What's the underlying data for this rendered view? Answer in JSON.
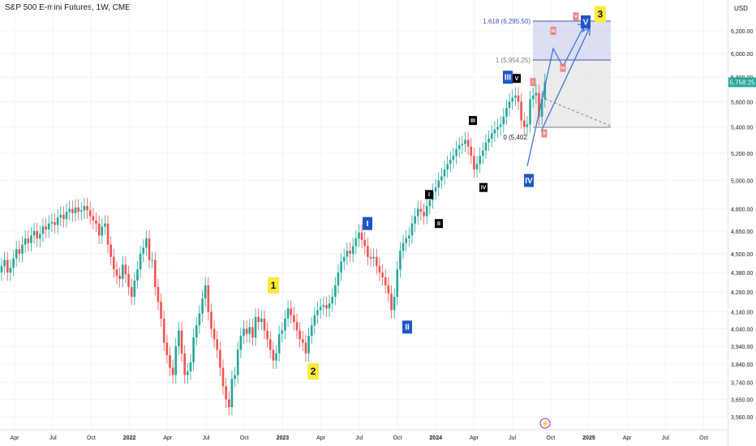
{
  "header": {
    "title": "S&P 500 E-mini Futures, 1W, CME",
    "currency": "USD"
  },
  "price_badge": {
    "value": "5,758.25",
    "color": "#26a69a"
  },
  "colors": {
    "up": "#26a69a",
    "down": "#ef5350",
    "wave_blue": "#1e55c7",
    "label_yellow": "#ffeb3b",
    "accent_pink": "#e57373",
    "fib_fill": "#c5cae9"
  },
  "chart_data": {
    "type": "candlestick",
    "x_axis": {
      "ticks": [
        "Apr",
        "Jul",
        "Oct",
        "2022",
        "Apr",
        "Jul",
        "Oct",
        "2023",
        "Apr",
        "Jul",
        "Oct",
        "2024",
        "Apr",
        "Jul",
        "Oct",
        "2025",
        "Apr",
        "Jul",
        "Oct"
      ]
    },
    "y_axis": {
      "scale": "log",
      "ticks": [
        3560,
        3650,
        3740,
        3840,
        3940,
        4040,
        4140,
        4260,
        4380,
        4500,
        4650,
        4800,
        5000,
        5200,
        5400,
        5600,
        5800,
        6000,
        6200
      ],
      "tick_labels": [
        "3,560.00",
        "3,650.00",
        "3,740.00",
        "3,840.00",
        "3,940.00",
        "4,040.00",
        "4,140.00",
        "4,260.00",
        "4,380.00",
        "4,500.00",
        "4,650.00",
        "4,800.00",
        "5,000.00",
        "5,200.00",
        "5,400.00",
        "5,600.00",
        "5,800.00",
        "6,000.00",
        "6,200.00"
      ]
    },
    "last_price": 5758.25,
    "fib_levels": [
      {
        "label": "1.618 (6,295.50)",
        "value": 6295.5
      },
      {
        "label": "1 (5,954.25)",
        "value": 5954.25
      },
      {
        "label": "0 (5,402.",
        "value": 5402
      }
    ],
    "wave_labels": [
      {
        "text": "1",
        "style": "yellow",
        "price": 4300
      },
      {
        "text": "2",
        "style": "yellow",
        "price": 3800
      },
      {
        "text": "3",
        "style": "yellow",
        "price": 6350
      },
      {
        "text": "I",
        "style": "blue",
        "price": 4700
      },
      {
        "text": "II",
        "style": "blue",
        "price": 4050
      },
      {
        "text": "III",
        "style": "blue",
        "price": 5800
      },
      {
        "text": "IV",
        "style": "blue",
        "price": 5000
      },
      {
        "text": "V",
        "style": "blue",
        "price": 6280
      },
      {
        "text": "I",
        "style": "black",
        "price": 4900
      },
      {
        "text": "II",
        "style": "black",
        "price": 4700
      },
      {
        "text": "III",
        "style": "black",
        "price": 5450
      },
      {
        "text": "IV",
        "style": "black",
        "price": 4950
      },
      {
        "text": "V",
        "style": "black",
        "price": 5790
      },
      {
        "text": "i",
        "style": "pink",
        "price": 5760
      },
      {
        "text": "ii",
        "style": "pink",
        "price": 5350
      },
      {
        "text": "iii",
        "style": "pink",
        "price": 6200
      },
      {
        "text": "iv",
        "style": "pink",
        "price": 5880
      },
      {
        "text": "v",
        "style": "pink",
        "price": 6330
      }
    ],
    "candles": [
      [
        4380,
        4420
      ],
      [
        4420,
        4460
      ],
      [
        4460,
        4380
      ],
      [
        4380,
        4410
      ],
      [
        4410,
        4470
      ],
      [
        4470,
        4530
      ],
      [
        4530,
        4500
      ],
      [
        4500,
        4560
      ],
      [
        4560,
        4600
      ],
      [
        4600,
        4570
      ],
      [
        4570,
        4620
      ],
      [
        4620,
        4650
      ],
      [
        4650,
        4600
      ],
      [
        4600,
        4630
      ],
      [
        4630,
        4680
      ],
      [
        4680,
        4660
      ],
      [
        4660,
        4700
      ],
      [
        4700,
        4710
      ],
      [
        4710,
        4690
      ],
      [
        4690,
        4740
      ],
      [
        4740,
        4760
      ],
      [
        4760,
        4730
      ],
      [
        4730,
        4780
      ],
      [
        4780,
        4800
      ],
      [
        4800,
        4770
      ],
      [
        4770,
        4810
      ],
      [
        4810,
        4780
      ],
      [
        4780,
        4790
      ],
      [
        4790,
        4820
      ],
      [
        4820,
        4790
      ],
      [
        4790,
        4750
      ],
      [
        4750,
        4720
      ],
      [
        4720,
        4700
      ],
      [
        4700,
        4620
      ],
      [
        4620,
        4680
      ],
      [
        4680,
        4700
      ],
      [
        4700,
        4560
      ],
      [
        4560,
        4480
      ],
      [
        4480,
        4400
      ],
      [
        4400,
        4360
      ],
      [
        4360,
        4340
      ],
      [
        4340,
        4430
      ],
      [
        4430,
        4370
      ],
      [
        4370,
        4290
      ],
      [
        4290,
        4230
      ],
      [
        4230,
        4330
      ],
      [
        4330,
        4400
      ],
      [
        4400,
        4500
      ],
      [
        4500,
        4540
      ],
      [
        4540,
        4600
      ],
      [
        4600,
        4460
      ],
      [
        4460,
        4460
      ],
      [
        4460,
        4290
      ],
      [
        4290,
        4200
      ],
      [
        4200,
        4100
      ],
      [
        4100,
        3960
      ],
      [
        3960,
        3890
      ],
      [
        3890,
        3820
      ],
      [
        3820,
        3780
      ],
      [
        3780,
        3940
      ],
      [
        3940,
        4030
      ],
      [
        4030,
        3900
      ],
      [
        3900,
        3780
      ],
      [
        3780,
        3800
      ],
      [
        3800,
        3850
      ],
      [
        3850,
        3990
      ],
      [
        3990,
        4060
      ],
      [
        4060,
        4130
      ],
      [
        4130,
        4220
      ],
      [
        4220,
        4300
      ],
      [
        4300,
        4140
      ],
      [
        4140,
        4040
      ],
      [
        4040,
        3980
      ],
      [
        3980,
        3920
      ],
      [
        3920,
        3820
      ],
      [
        3820,
        3720
      ],
      [
        3720,
        3650
      ],
      [
        3650,
        3610
      ],
      [
        3610,
        3760
      ],
      [
        3760,
        3780
      ],
      [
        3780,
        3920
      ],
      [
        3920,
        4000
      ],
      [
        4000,
        4040
      ],
      [
        4040,
        4010
      ],
      [
        4010,
        4050
      ],
      [
        4050,
        3990
      ],
      [
        3990,
        4110
      ],
      [
        4110,
        4080
      ],
      [
        4080,
        4100
      ],
      [
        4100,
        4030
      ],
      [
        4030,
        3980
      ],
      [
        3980,
        3920
      ],
      [
        3920,
        3860
      ],
      [
        3860,
        3900
      ],
      [
        3900,
        4010
      ],
      [
        4010,
        4030
      ],
      [
        4030,
        4100
      ],
      [
        4100,
        4160
      ],
      [
        4160,
        4120
      ],
      [
        4120,
        4080
      ],
      [
        4080,
        4030
      ],
      [
        4030,
        3980
      ],
      [
        3980,
        3960
      ],
      [
        3960,
        3900
      ],
      [
        3900,
        4000
      ],
      [
        4000,
        4060
      ],
      [
        4060,
        4120
      ],
      [
        4120,
        4150
      ],
      [
        4150,
        4170
      ],
      [
        4170,
        4180
      ],
      [
        4180,
        4160
      ],
      [
        4160,
        4190
      ],
      [
        4190,
        4230
      ],
      [
        4230,
        4300
      ],
      [
        4300,
        4380
      ],
      [
        4380,
        4450
      ],
      [
        4450,
        4480
      ],
      [
        4480,
        4520
      ],
      [
        4520,
        4500
      ],
      [
        4500,
        4550
      ],
      [
        4550,
        4600
      ],
      [
        4600,
        4640
      ],
      [
        4640,
        4590
      ],
      [
        4590,
        4550
      ],
      [
        4550,
        4480
      ],
      [
        4480,
        4470
      ],
      [
        4470,
        4480
      ],
      [
        4480,
        4420
      ],
      [
        4420,
        4380
      ],
      [
        4380,
        4350
      ],
      [
        4350,
        4300
      ],
      [
        4300,
        4250
      ],
      [
        4250,
        4150
      ],
      [
        4150,
        4230
      ],
      [
        4230,
        4400
      ],
      [
        4400,
        4520
      ],
      [
        4520,
        4570
      ],
      [
        4570,
        4600
      ],
      [
        4600,
        4620
      ],
      [
        4620,
        4700
      ],
      [
        4700,
        4750
      ],
      [
        4750,
        4800
      ],
      [
        4800,
        4780
      ],
      [
        4780,
        4750
      ],
      [
        4750,
        4820
      ],
      [
        4820,
        4860
      ],
      [
        4860,
        4920
      ],
      [
        4920,
        4950
      ],
      [
        4950,
        5000
      ],
      [
        5000,
        5030
      ],
      [
        5030,
        5080
      ],
      [
        5080,
        5120
      ],
      [
        5120,
        5150
      ],
      [
        5150,
        5180
      ],
      [
        5180,
        5230
      ],
      [
        5230,
        5260
      ],
      [
        5260,
        5270
      ],
      [
        5270,
        5300
      ],
      [
        5300,
        5250
      ],
      [
        5250,
        5180
      ],
      [
        5180,
        5080
      ],
      [
        5080,
        5120
      ],
      [
        5120,
        5180
      ],
      [
        5180,
        5220
      ],
      [
        5220,
        5280
      ],
      [
        5280,
        5310
      ],
      [
        5310,
        5350
      ],
      [
        5350,
        5380
      ],
      [
        5380,
        5400
      ],
      [
        5400,
        5420
      ],
      [
        5420,
        5480
      ],
      [
        5480,
        5550
      ],
      [
        5550,
        5600
      ],
      [
        5600,
        5630
      ],
      [
        5630,
        5650
      ],
      [
        5650,
        5600
      ],
      [
        5600,
        5450
      ],
      [
        5450,
        5400
      ],
      [
        5400,
        5420
      ],
      [
        5420,
        5620
      ],
      [
        5620,
        5650
      ],
      [
        5650,
        5670
      ],
      [
        5670,
        5480
      ],
      [
        5480,
        5620
      ],
      [
        5620,
        5760
      ]
    ]
  }
}
